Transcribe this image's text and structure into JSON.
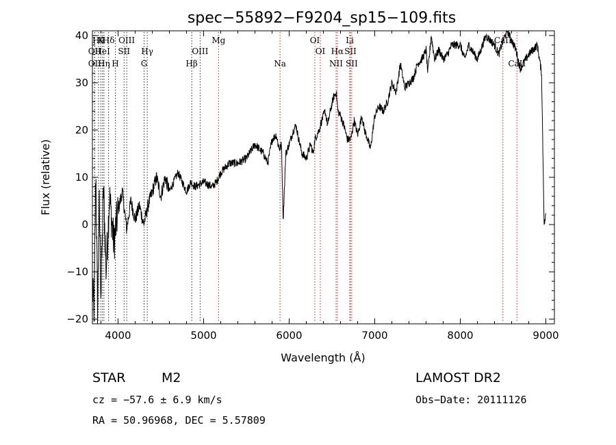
{
  "chart_data": {
    "type": "line",
    "title": "spec−55892−F9204_sp15−109.fits",
    "xlabel": "Wavelength (Å)",
    "ylabel": "Flux (relative)",
    "xlim": [
      3700,
      9100
    ],
    "ylim": [
      -21,
      41
    ],
    "x_ticks": [
      4000,
      5000,
      6000,
      7000,
      8000,
      9000
    ],
    "y_ticks": [
      -20,
      -10,
      0,
      10,
      20,
      30,
      40
    ],
    "x_tick_labels": [
      "4000",
      "5000",
      "6000",
      "7000",
      "8000",
      "9000"
    ],
    "y_tick_labels": [
      "−20",
      "−10",
      "0",
      "10",
      "20",
      "30",
      "40"
    ],
    "series": [
      {
        "x": [
          3700,
          3720,
          3740,
          3760,
          3780,
          3800,
          3830,
          3860,
          3900,
          3950,
          4000,
          4050,
          4100,
          4150,
          4200,
          4250,
          4300,
          4350,
          4400,
          4450,
          4500,
          4550,
          4600,
          4700,
          4800,
          4850,
          4900,
          5000,
          5100,
          5150,
          5200,
          5250,
          5300,
          5400,
          5500,
          5600,
          5650,
          5700,
          5750,
          5800,
          5850,
          5870,
          5890,
          5910,
          5930,
          5960,
          6000,
          6050,
          6080,
          6100,
          6150,
          6200,
          6250,
          6280,
          6300,
          6350,
          6380,
          6420,
          6450,
          6480,
          6520,
          6550,
          6570,
          6600,
          6640,
          6680,
          6720,
          6760,
          6800,
          6850,
          6880,
          6900,
          6950,
          7000,
          7050,
          7100,
          7150,
          7200,
          7250,
          7300,
          7350,
          7400,
          7450,
          7500,
          7550,
          7580,
          7600,
          7620,
          7640,
          7660,
          7700,
          7750,
          7800,
          7850,
          7900,
          8000,
          8050,
          8100,
          8200,
          8300,
          8400,
          8450,
          8500,
          8550,
          8600,
          8650,
          8700,
          8800,
          8900,
          8950,
          8980,
          9000
        ],
        "y": [
          -14,
          -18,
          12,
          -19,
          5,
          -15,
          8,
          -10,
          6,
          -4,
          3,
          7,
          -1,
          5,
          1,
          4,
          0,
          4,
          7,
          10,
          6,
          10,
          7,
          11,
          7,
          9,
          8,
          9,
          8,
          9,
          11,
          12,
          13,
          13,
          14,
          17,
          16,
          15,
          13,
          18,
          19,
          17,
          16,
          17,
          1,
          15,
          17,
          20,
          21,
          19,
          15,
          14,
          17,
          15,
          18,
          20,
          22,
          24,
          21,
          24,
          27,
          28,
          24,
          23,
          21,
          18,
          18,
          22,
          19,
          23,
          20,
          19,
          16,
          23,
          25,
          24,
          26,
          30,
          28,
          34,
          29,
          30,
          31,
          34,
          35,
          36,
          37,
          32,
          36,
          40,
          35,
          37,
          35,
          36,
          38,
          38,
          35,
          38,
          35,
          40,
          38,
          36,
          39,
          41,
          39,
          37,
          33,
          36,
          38,
          32,
          0,
          2
        ]
      }
    ],
    "line_markers": [
      {
        "x": 3771,
        "label": "Hθ",
        "row": 1,
        "color": "#222222"
      },
      {
        "x": 3798,
        "label": "K",
        "row": 1,
        "color": "#222222"
      },
      {
        "x": 3889,
        "label": "Hδ",
        "row": 1,
        "color": "#222222"
      },
      {
        "x": 4101,
        "label": "OIII",
        "row": 1,
        "color": "#222222"
      },
      {
        "x": 5175,
        "label": "Mg",
        "row": 1,
        "color": "#d21919"
      },
      {
        "x": 6300,
        "label": "OI",
        "row": 1,
        "color": "#d21919"
      },
      {
        "x": 6708,
        "label": "Li",
        "row": 1,
        "color": "#d21919"
      },
      {
        "x": 8498,
        "label": "CaII",
        "row": 1,
        "color": "#d21919"
      },
      {
        "x": 3727,
        "label": "OII",
        "row": 2,
        "color": "#222222"
      },
      {
        "x": 3818,
        "label": "HeI",
        "row": 2,
        "color": "#222222"
      },
      {
        "x": 4070,
        "label": "SII",
        "row": 2,
        "color": "#222222"
      },
      {
        "x": 4341,
        "label": "Hγ",
        "row": 2,
        "color": "#222222"
      },
      {
        "x": 4959,
        "label": "OIII",
        "row": 2,
        "color": "#222222"
      },
      {
        "x": 6364,
        "label": "OI",
        "row": 2,
        "color": "#d21919"
      },
      {
        "x": 6563,
        "label": "Hα",
        "row": 2,
        "color": "#d21919"
      },
      {
        "x": 6716,
        "label": "SII",
        "row": 2,
        "color": "#d21919"
      },
      {
        "x": 3727,
        "label": "OII",
        "row": 3,
        "color": "#222222"
      },
      {
        "x": 3835,
        "label": "Hη",
        "row": 3,
        "color": "#222222"
      },
      {
        "x": 3968,
        "label": "H",
        "row": 3,
        "color": "#222222"
      },
      {
        "x": 4304,
        "label": "G",
        "row": 3,
        "color": "#222222"
      },
      {
        "x": 4861,
        "label": "Hβ",
        "row": 3,
        "color": "#222222"
      },
      {
        "x": 5893,
        "label": "Na",
        "row": 3,
        "color": "#d21919"
      },
      {
        "x": 6548,
        "label": "NII",
        "row": 3,
        "color": "#d21919"
      },
      {
        "x": 6731,
        "label": "SII",
        "row": 3,
        "color": "#d21919"
      },
      {
        "x": 8662,
        "label": "CaII",
        "row": 3,
        "color": "#d21919"
      }
    ]
  },
  "info": {
    "object_class": "STAR",
    "subclass": "M2",
    "survey": "LAMOST DR2",
    "cz": "cz = −57.6 ± 6.9 km/s",
    "obs_date": "Obs−Date: 20111126",
    "radec": "RA =  50.96968, DEC =   5.57809"
  }
}
